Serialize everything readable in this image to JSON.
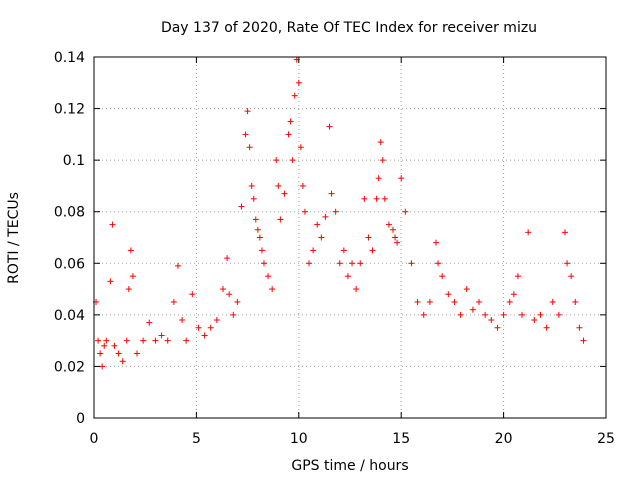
{
  "chart_data": {
    "type": "scatter",
    "title": "Day 137 of 2020, Rate Of TEC Index for receiver mizu",
    "xlabel": "GPS time / hours",
    "ylabel": "ROTI / TECUs",
    "xlim": [
      0,
      25
    ],
    "ylim": [
      0,
      0.14
    ],
    "x_ticks": [
      "0",
      "5",
      "10",
      "15",
      "20",
      "25"
    ],
    "y_ticks": [
      "0",
      "0.02",
      "0.04",
      "0.06",
      "0.08",
      "0.1",
      "0.12",
      "0.14"
    ],
    "grid": true,
    "marker": "plus",
    "color": "#ff0000",
    "series": [
      {
        "x": [
          0.1,
          0.2,
          0.3,
          0.4,
          0.5,
          0.6,
          0.8,
          0.9,
          1.0,
          1.2,
          1.4,
          1.6,
          1.7,
          1.8,
          1.9,
          2.1,
          2.4,
          2.7,
          3.0,
          3.3,
          3.6,
          3.9,
          4.1,
          4.3,
          4.5,
          4.8,
          5.1,
          5.4,
          5.7,
          6.0,
          6.3,
          6.5,
          6.6,
          6.8,
          7.0,
          7.2,
          7.4,
          7.5,
          7.6,
          7.7,
          7.8,
          7.9,
          8.0,
          8.1,
          8.2,
          8.3,
          8.5,
          8.7,
          8.9,
          9.0,
          9.1,
          9.3,
          9.5,
          9.6,
          9.7,
          9.8,
          9.9,
          10.0,
          10.1,
          10.2,
          10.3,
          10.5,
          10.7,
          10.9,
          11.1,
          11.3,
          11.5,
          11.6,
          11.8,
          12.0,
          12.2,
          12.4,
          12.6,
          12.8,
          13.0,
          13.2,
          13.4,
          13.6,
          13.8,
          13.9,
          14.0,
          14.1,
          14.2,
          14.4,
          14.6,
          14.7,
          14.8,
          15.0,
          15.2,
          15.5,
          15.8,
          16.1,
          16.4,
          16.7,
          16.8,
          17.0,
          17.3,
          17.6,
          17.9,
          18.2,
          18.5,
          18.8,
          19.1,
          19.4,
          19.7,
          20.0,
          20.3,
          20.5,
          20.7,
          20.9,
          21.2,
          21.5,
          21.8,
          22.1,
          22.4,
          22.7,
          23.0,
          23.1,
          23.3,
          23.5,
          23.7,
          23.9
        ],
        "y": [
          0.045,
          0.03,
          0.025,
          0.02,
          0.028,
          0.03,
          0.053,
          0.075,
          0.028,
          0.025,
          0.022,
          0.03,
          0.05,
          0.065,
          0.055,
          0.025,
          0.03,
          0.037,
          0.03,
          0.032,
          0.03,
          0.045,
          0.059,
          0.038,
          0.03,
          0.048,
          0.035,
          0.032,
          0.035,
          0.038,
          0.05,
          0.062,
          0.048,
          0.04,
          0.045,
          0.082,
          0.11,
          0.119,
          0.105,
          0.09,
          0.085,
          0.077,
          0.073,
          0.07,
          0.065,
          0.06,
          0.055,
          0.05,
          0.1,
          0.09,
          0.077,
          0.087,
          0.11,
          0.115,
          0.1,
          0.125,
          0.139,
          0.13,
          0.105,
          0.09,
          0.08,
          0.06,
          0.065,
          0.075,
          0.07,
          0.078,
          0.113,
          0.087,
          0.08,
          0.06,
          0.065,
          0.055,
          0.06,
          0.05,
          0.06,
          0.085,
          0.07,
          0.065,
          0.085,
          0.093,
          0.107,
          0.1,
          0.085,
          0.075,
          0.073,
          0.07,
          0.068,
          0.093,
          0.08,
          0.06,
          0.045,
          0.04,
          0.045,
          0.068,
          0.06,
          0.055,
          0.048,
          0.045,
          0.04,
          0.05,
          0.042,
          0.045,
          0.04,
          0.038,
          0.035,
          0.04,
          0.045,
          0.048,
          0.055,
          0.04,
          0.072,
          0.038,
          0.04,
          0.035,
          0.045,
          0.04,
          0.072,
          0.06,
          0.055,
          0.045,
          0.035,
          0.03
        ]
      }
    ]
  }
}
